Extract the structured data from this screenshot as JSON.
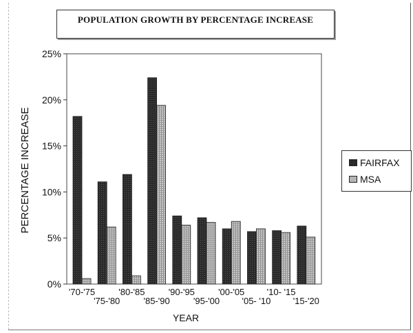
{
  "chart_data": {
    "type": "bar",
    "title": "POPULATION   GROWTH   BY PERCENTAGE INCREASE",
    "xlabel": "YEAR",
    "ylabel": "PERCENTAGE  INCREASE",
    "ylim": [
      0,
      25
    ],
    "yticks": [
      "0%",
      "5%",
      "10%",
      "15%",
      "20%",
      "25%"
    ],
    "categories": [
      "'70-'75",
      "'75-'80",
      "'80-'85",
      "'85-'90",
      "'90-'95",
      "'95-'00",
      "'00-'05",
      "'05- '10",
      "'10- '15",
      "'15-'20"
    ],
    "series": [
      {
        "name": "FAIRFAX",
        "color": "#2a2a2a",
        "values": [
          18.2,
          11.1,
          11.9,
          22.4,
          7.4,
          7.2,
          6.0,
          5.7,
          5.8,
          6.3
        ]
      },
      {
        "name": "MSA",
        "color": "#b5b5b5",
        "values": [
          0.6,
          6.2,
          0.9,
          19.4,
          6.4,
          6.7,
          6.8,
          6.0,
          5.6,
          5.1
        ]
      }
    ],
    "grid": false,
    "legend": "right"
  }
}
